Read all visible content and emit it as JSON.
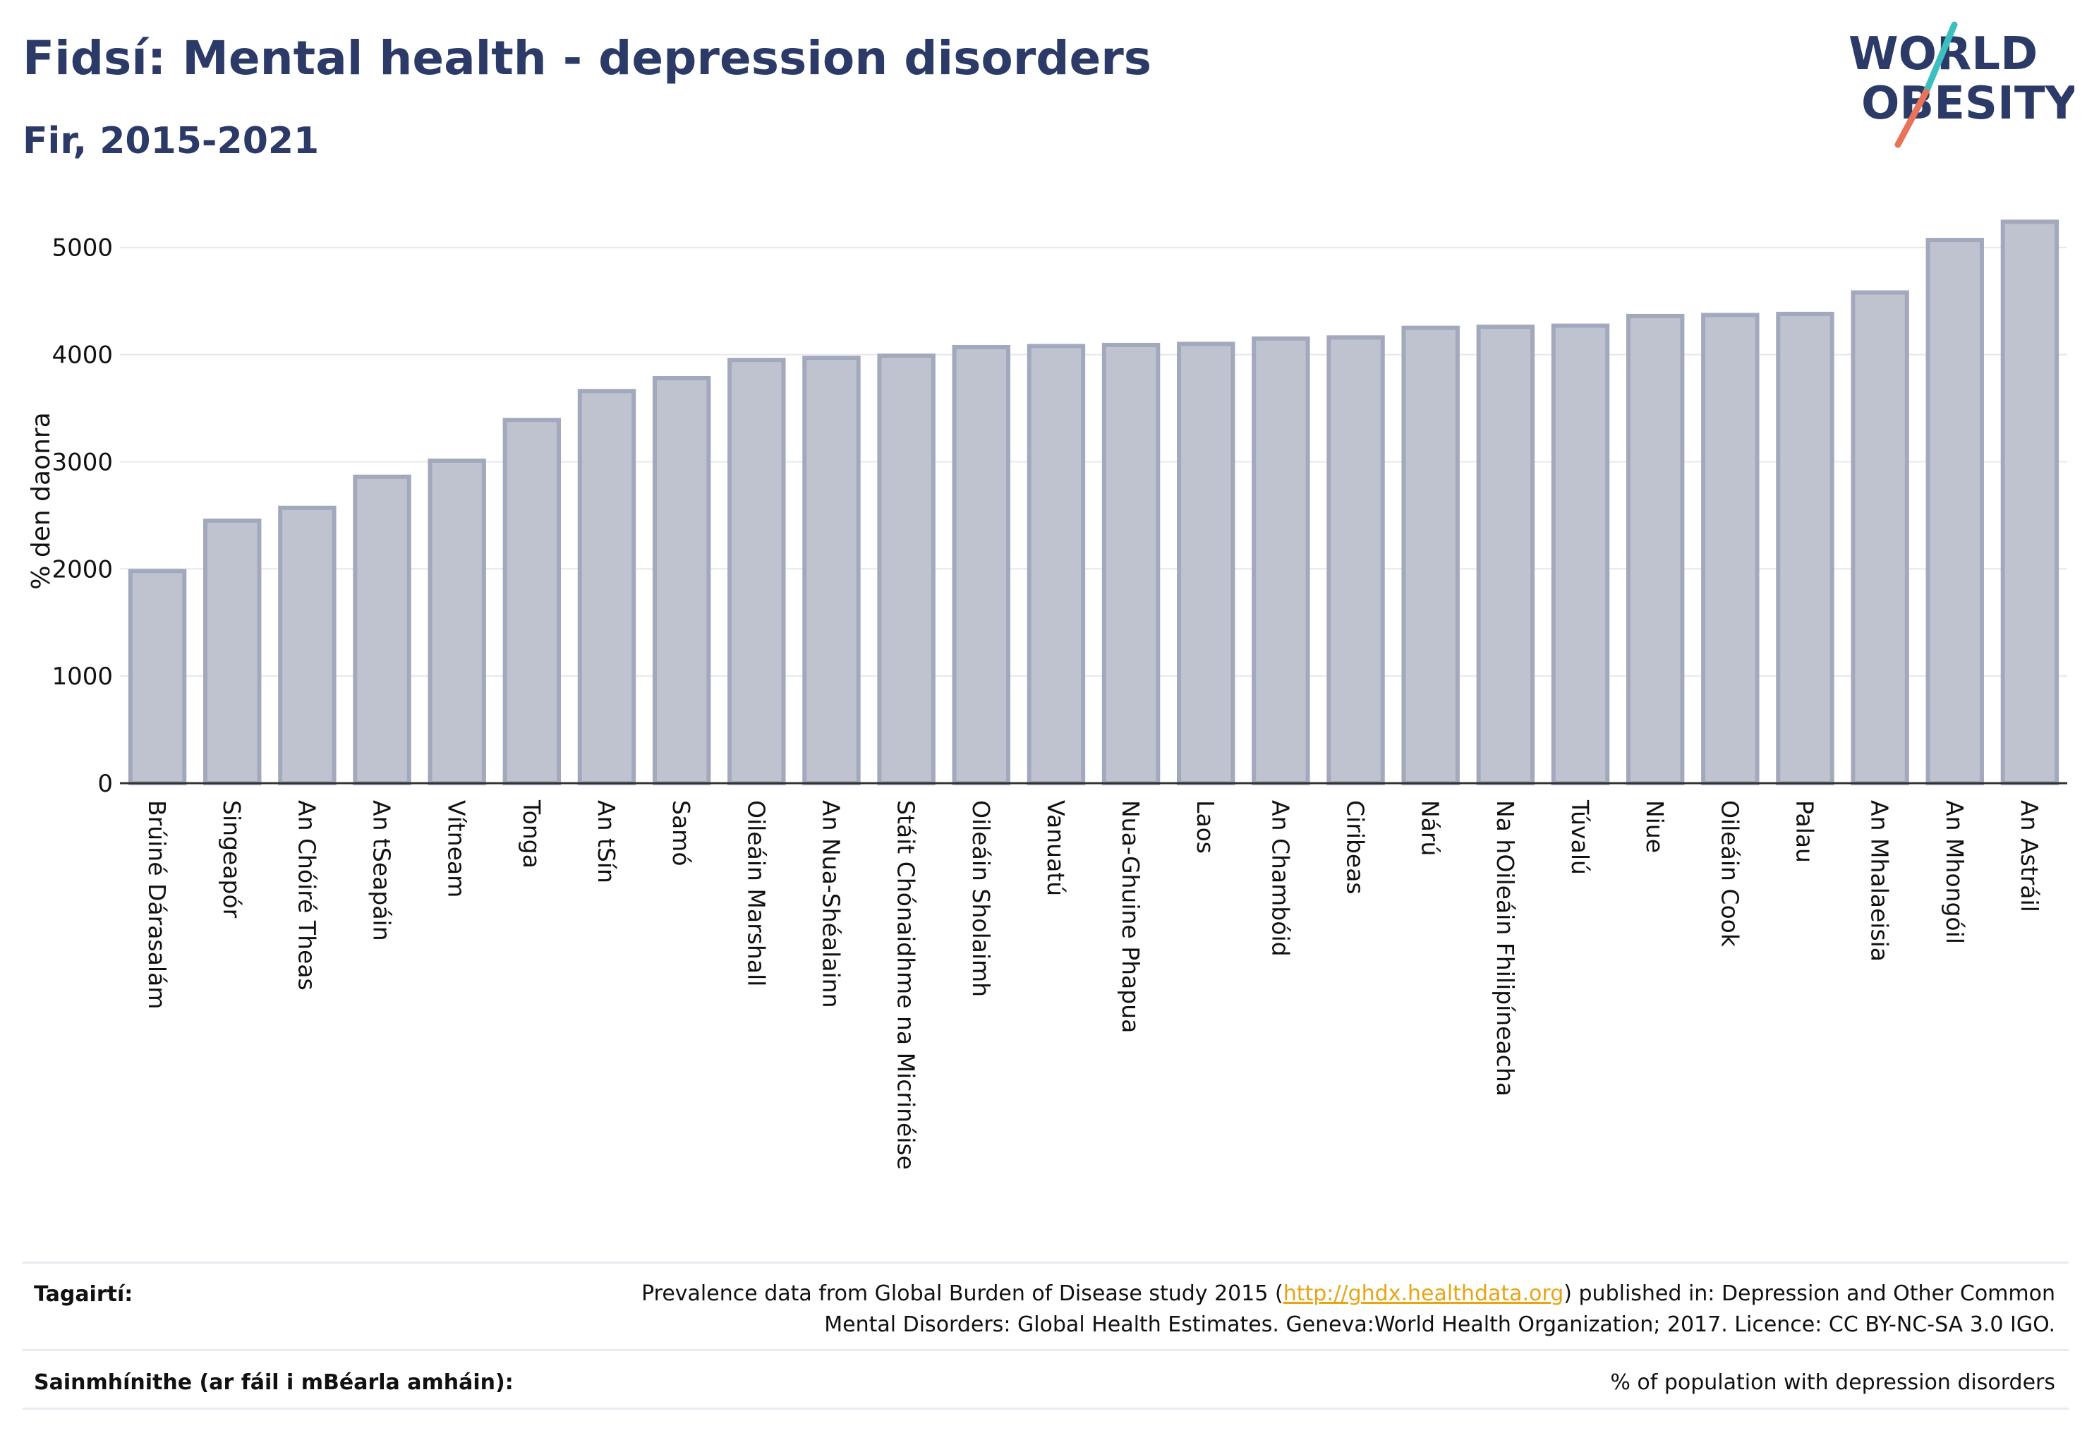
{
  "header": {
    "title": "Fidsí: Mental health - depression disorders",
    "subtitle": "Fir, 2015-2021"
  },
  "logo": {
    "line1": "WORLD",
    "line2": "OBESITY",
    "colors": {
      "text": "#2b3a67",
      "slash_top": "#3bbfbf",
      "slash_bottom": "#e8735a"
    }
  },
  "chart_data": {
    "type": "bar",
    "ylabel": "% den daonra",
    "xlabel": "",
    "ylim": [
      0,
      5400
    ],
    "yticks": [
      0,
      1000,
      2000,
      3000,
      4000,
      5000
    ],
    "grid": true,
    "bar_color": "#bfc3d0",
    "bar_edge_color": "#a3a9bd",
    "categories": [
      "Brúiné Dárasalám",
      "Singeapór",
      "An Chóiré Theas",
      "An tSeapáin",
      "Vítneam",
      "Tonga",
      "An tSín",
      "Samó",
      "Oileáin Marshall",
      "An Nua-Shéalainn",
      "Stáit Chónaidhme na Micrinéise",
      "Oileáin Sholaimh",
      "Vanuatú",
      "Nua-Ghuine Phapua",
      "Laos",
      "An Chambóid",
      "Ciribeas",
      "Nárú",
      "Na hOileáin Fhilipíneacha",
      "Túvalú",
      "Niue",
      "Oileáin Cook",
      "Palau",
      "An Mhalaeisia",
      "An Mhongóil",
      "An Astráil"
    ],
    "values": [
      1980,
      2450,
      2570,
      2860,
      3010,
      3390,
      3660,
      3780,
      3950,
      3970,
      3990,
      4070,
      4080,
      4090,
      4100,
      4150,
      4160,
      4250,
      4260,
      4270,
      4360,
      4370,
      4380,
      4580,
      5070,
      5240
    ]
  },
  "footer": {
    "references_label": "Tagairtí:",
    "references_text_before": "Prevalence data from Global Burden of Disease study 2015 (",
    "references_link": "http://ghdx.healthdata.org",
    "references_text_after": ") published in: Depression and Other Common",
    "references_text_line2": "Mental Disorders: Global Health Estimates. Geneva:World Health Organization; 2017. Licence: CC BY-NC-SA 3.0 IGO.",
    "definitions_label": "Sainmhínithe (ar fáil i mBéarla amháin):",
    "definitions_text": "% of population with depression disorders"
  }
}
